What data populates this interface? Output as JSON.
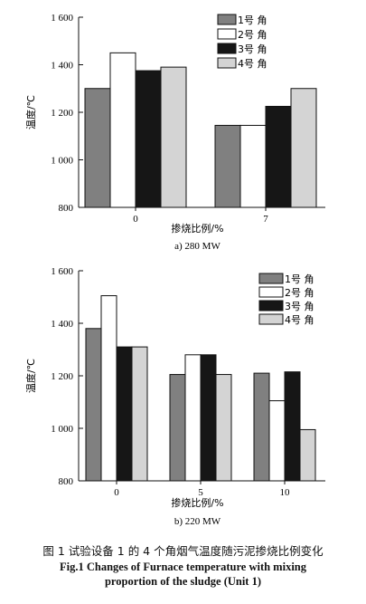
{
  "chart_data": [
    {
      "type": "bar",
      "subtitle": "a) 280 MW",
      "xlabel": "掺烧比例/%",
      "ylabel": "温度/℃",
      "categories": [
        "0",
        "7"
      ],
      "ylim": [
        800,
        1600
      ],
      "yticks": [
        800,
        1000,
        1200,
        1400,
        1600
      ],
      "ytick_labels": [
        "800",
        "1 000",
        "1 200",
        "1 400",
        "1 600"
      ],
      "legend_position": "top-right",
      "series": [
        {
          "name": "1号 角",
          "color": "#808080",
          "values": [
            1300,
            1145
          ]
        },
        {
          "name": "2号 角",
          "color": "#ffffff",
          "values": [
            1450,
            1145
          ]
        },
        {
          "name": "3号 角",
          "color": "#161616",
          "values": [
            1375,
            1225
          ]
        },
        {
          "name": "4号 角",
          "color": "#d4d4d4",
          "values": [
            1390,
            1300
          ]
        }
      ]
    },
    {
      "type": "bar",
      "subtitle": "b) 220 MW",
      "xlabel": "掺烧比例/%",
      "ylabel": "温度/℃",
      "categories": [
        "0",
        "5",
        "10"
      ],
      "ylim": [
        800,
        1600
      ],
      "yticks": [
        800,
        1000,
        1200,
        1400,
        1600
      ],
      "ytick_labels": [
        "800",
        "1 000",
        "1 200",
        "1 400",
        "1 600"
      ],
      "legend_position": "top-right",
      "series": [
        {
          "name": "1号 角",
          "color": "#808080",
          "values": [
            1380,
            1205,
            1210
          ]
        },
        {
          "name": "2号 角",
          "color": "#ffffff",
          "values": [
            1505,
            1280,
            1105
          ]
        },
        {
          "name": "3号 角",
          "color": "#161616",
          "values": [
            1310,
            1280,
            1215
          ]
        },
        {
          "name": "4号 角",
          "color": "#d4d4d4",
          "values": [
            1310,
            1205,
            995
          ]
        }
      ]
    }
  ],
  "caption": {
    "cn": "图 1 试验设备 1 的 4 个角烟气温度随污泥掺烧比例变化",
    "en_line1": "Fig.1 Changes of Furnace temperature with mixing",
    "en_line2": "proportion of the sludge (Unit 1)"
  }
}
